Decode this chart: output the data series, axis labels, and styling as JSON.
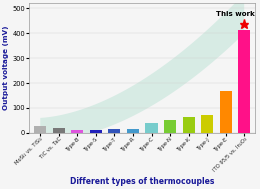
{
  "categories": [
    "MoSi₂ vs. TiSi₂",
    "TiC vs. TaC",
    "Type-B",
    "Type-S",
    "Type-T",
    "Type-R",
    "Type-C",
    "Type-N",
    "Type-K",
    "Type-J",
    "Type-E",
    "ITO 95/5 vs. In₂O₃"
  ],
  "values": [
    28,
    18,
    10,
    13,
    15,
    17,
    40,
    50,
    62,
    70,
    170,
    415
  ],
  "bar_colors": [
    "#b0b0b0",
    "#787878",
    "#dd55dd",
    "#2222bb",
    "#3355bb",
    "#4499cc",
    "#77cccc",
    "#77cc33",
    "#99cc11",
    "#cccc00",
    "#ff8800",
    "#ff1188"
  ],
  "ylabel": "Output voltage (mV)",
  "xlabel": "Different types of thermocouples",
  "ylim": [
    0,
    520
  ],
  "yticks": [
    0,
    100,
    200,
    300,
    400,
    500
  ],
  "annotation": "This work",
  "bg_color": "#f5f5f5",
  "star_color": "#ee0000",
  "swoosh_color": "#aaddcc"
}
